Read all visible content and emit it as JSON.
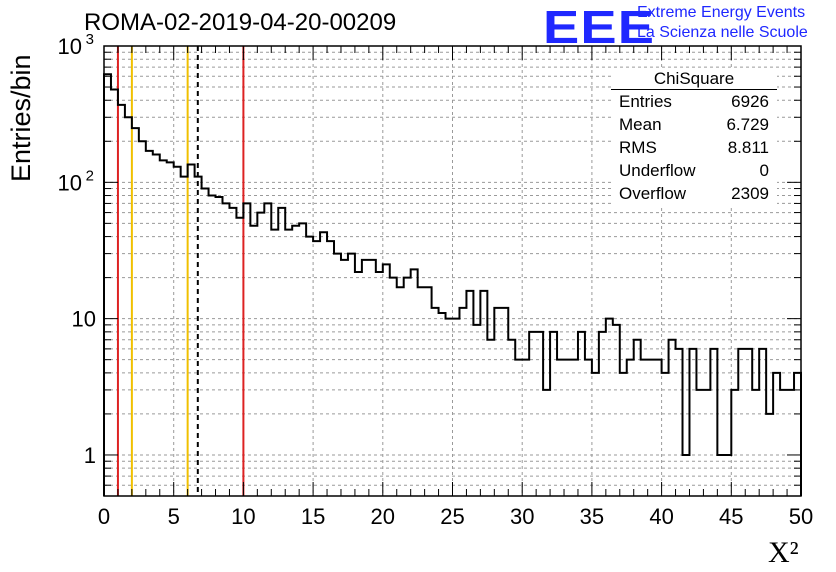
{
  "header": {
    "title": "ROMA-02-2019-04-20-00209",
    "logo_text": "EEE",
    "logo_line1": "Extreme Energy Events",
    "logo_line2": "La Scienza nelle Scuole"
  },
  "stats_box": {
    "title": "ChiSquare",
    "rows": [
      {
        "key": "Entries",
        "value": "6926"
      },
      {
        "key": "Mean",
        "value": "6.729"
      },
      {
        "key": "RMS",
        "value": "8.811"
      },
      {
        "key": "Underflow",
        "value": "0"
      },
      {
        "key": "Overflow",
        "value": "2309"
      }
    ]
  },
  "colors": {
    "histogram": "#000000",
    "red_lines": "#dd2222",
    "yellow_lines": "#f0c000",
    "mean_line": "#000000",
    "grid": "#9a9a9a",
    "logo": "#1f28ff"
  },
  "chart_data": {
    "type": "histogram",
    "title": "ROMA-02-2019-04-20-00209",
    "xlabel": "X²",
    "ylabel": "Entries/bin",
    "xlim": [
      0,
      50
    ],
    "ylim": [
      0.5,
      1000
    ],
    "yscale": "log",
    "grid": true,
    "bin_width": 0.5,
    "x_ticks": [
      "0",
      "5",
      "10",
      "15",
      "20",
      "25",
      "30",
      "35",
      "40",
      "45",
      "50"
    ],
    "y_ticks": [
      {
        "value": 1,
        "label": "1"
      },
      {
        "value": 10,
        "label": "10"
      },
      {
        "value": 100,
        "label": "10",
        "exp": "2"
      },
      {
        "value": 1000,
        "label": "10",
        "exp": "3"
      }
    ],
    "values": [
      620,
      480,
      370,
      300,
      250,
      200,
      170,
      160,
      145,
      140,
      130,
      110,
      135,
      110,
      90,
      80,
      78,
      70,
      65,
      55,
      70,
      48,
      60,
      70,
      45,
      65,
      45,
      48,
      50,
      40,
      37,
      43,
      37,
      30,
      27,
      30,
      22,
      27,
      27,
      22,
      25,
      20,
      17,
      20,
      23,
      17,
      17,
      12,
      11,
      10,
      10,
      12,
      16,
      9,
      16,
      7,
      12,
      12,
      7,
      5,
      5,
      8,
      8,
      3,
      8,
      5,
      5,
      5,
      8,
      5,
      4,
      8,
      10,
      9,
      4,
      5,
      7,
      5,
      5,
      5,
      4,
      7,
      6,
      1,
      6,
      3,
      3,
      6,
      1,
      1,
      3,
      6,
      6,
      3,
      6,
      2,
      4,
      3,
      3,
      4
    ],
    "vertical_lines": [
      {
        "x": 1,
        "color": "red",
        "style": "solid"
      },
      {
        "x": 2,
        "color": "yellow",
        "style": "solid"
      },
      {
        "x": 6,
        "color": "yellow",
        "style": "solid"
      },
      {
        "x": 6.729,
        "color": "black",
        "style": "dashed"
      },
      {
        "x": 10,
        "color": "red",
        "style": "solid"
      }
    ]
  }
}
